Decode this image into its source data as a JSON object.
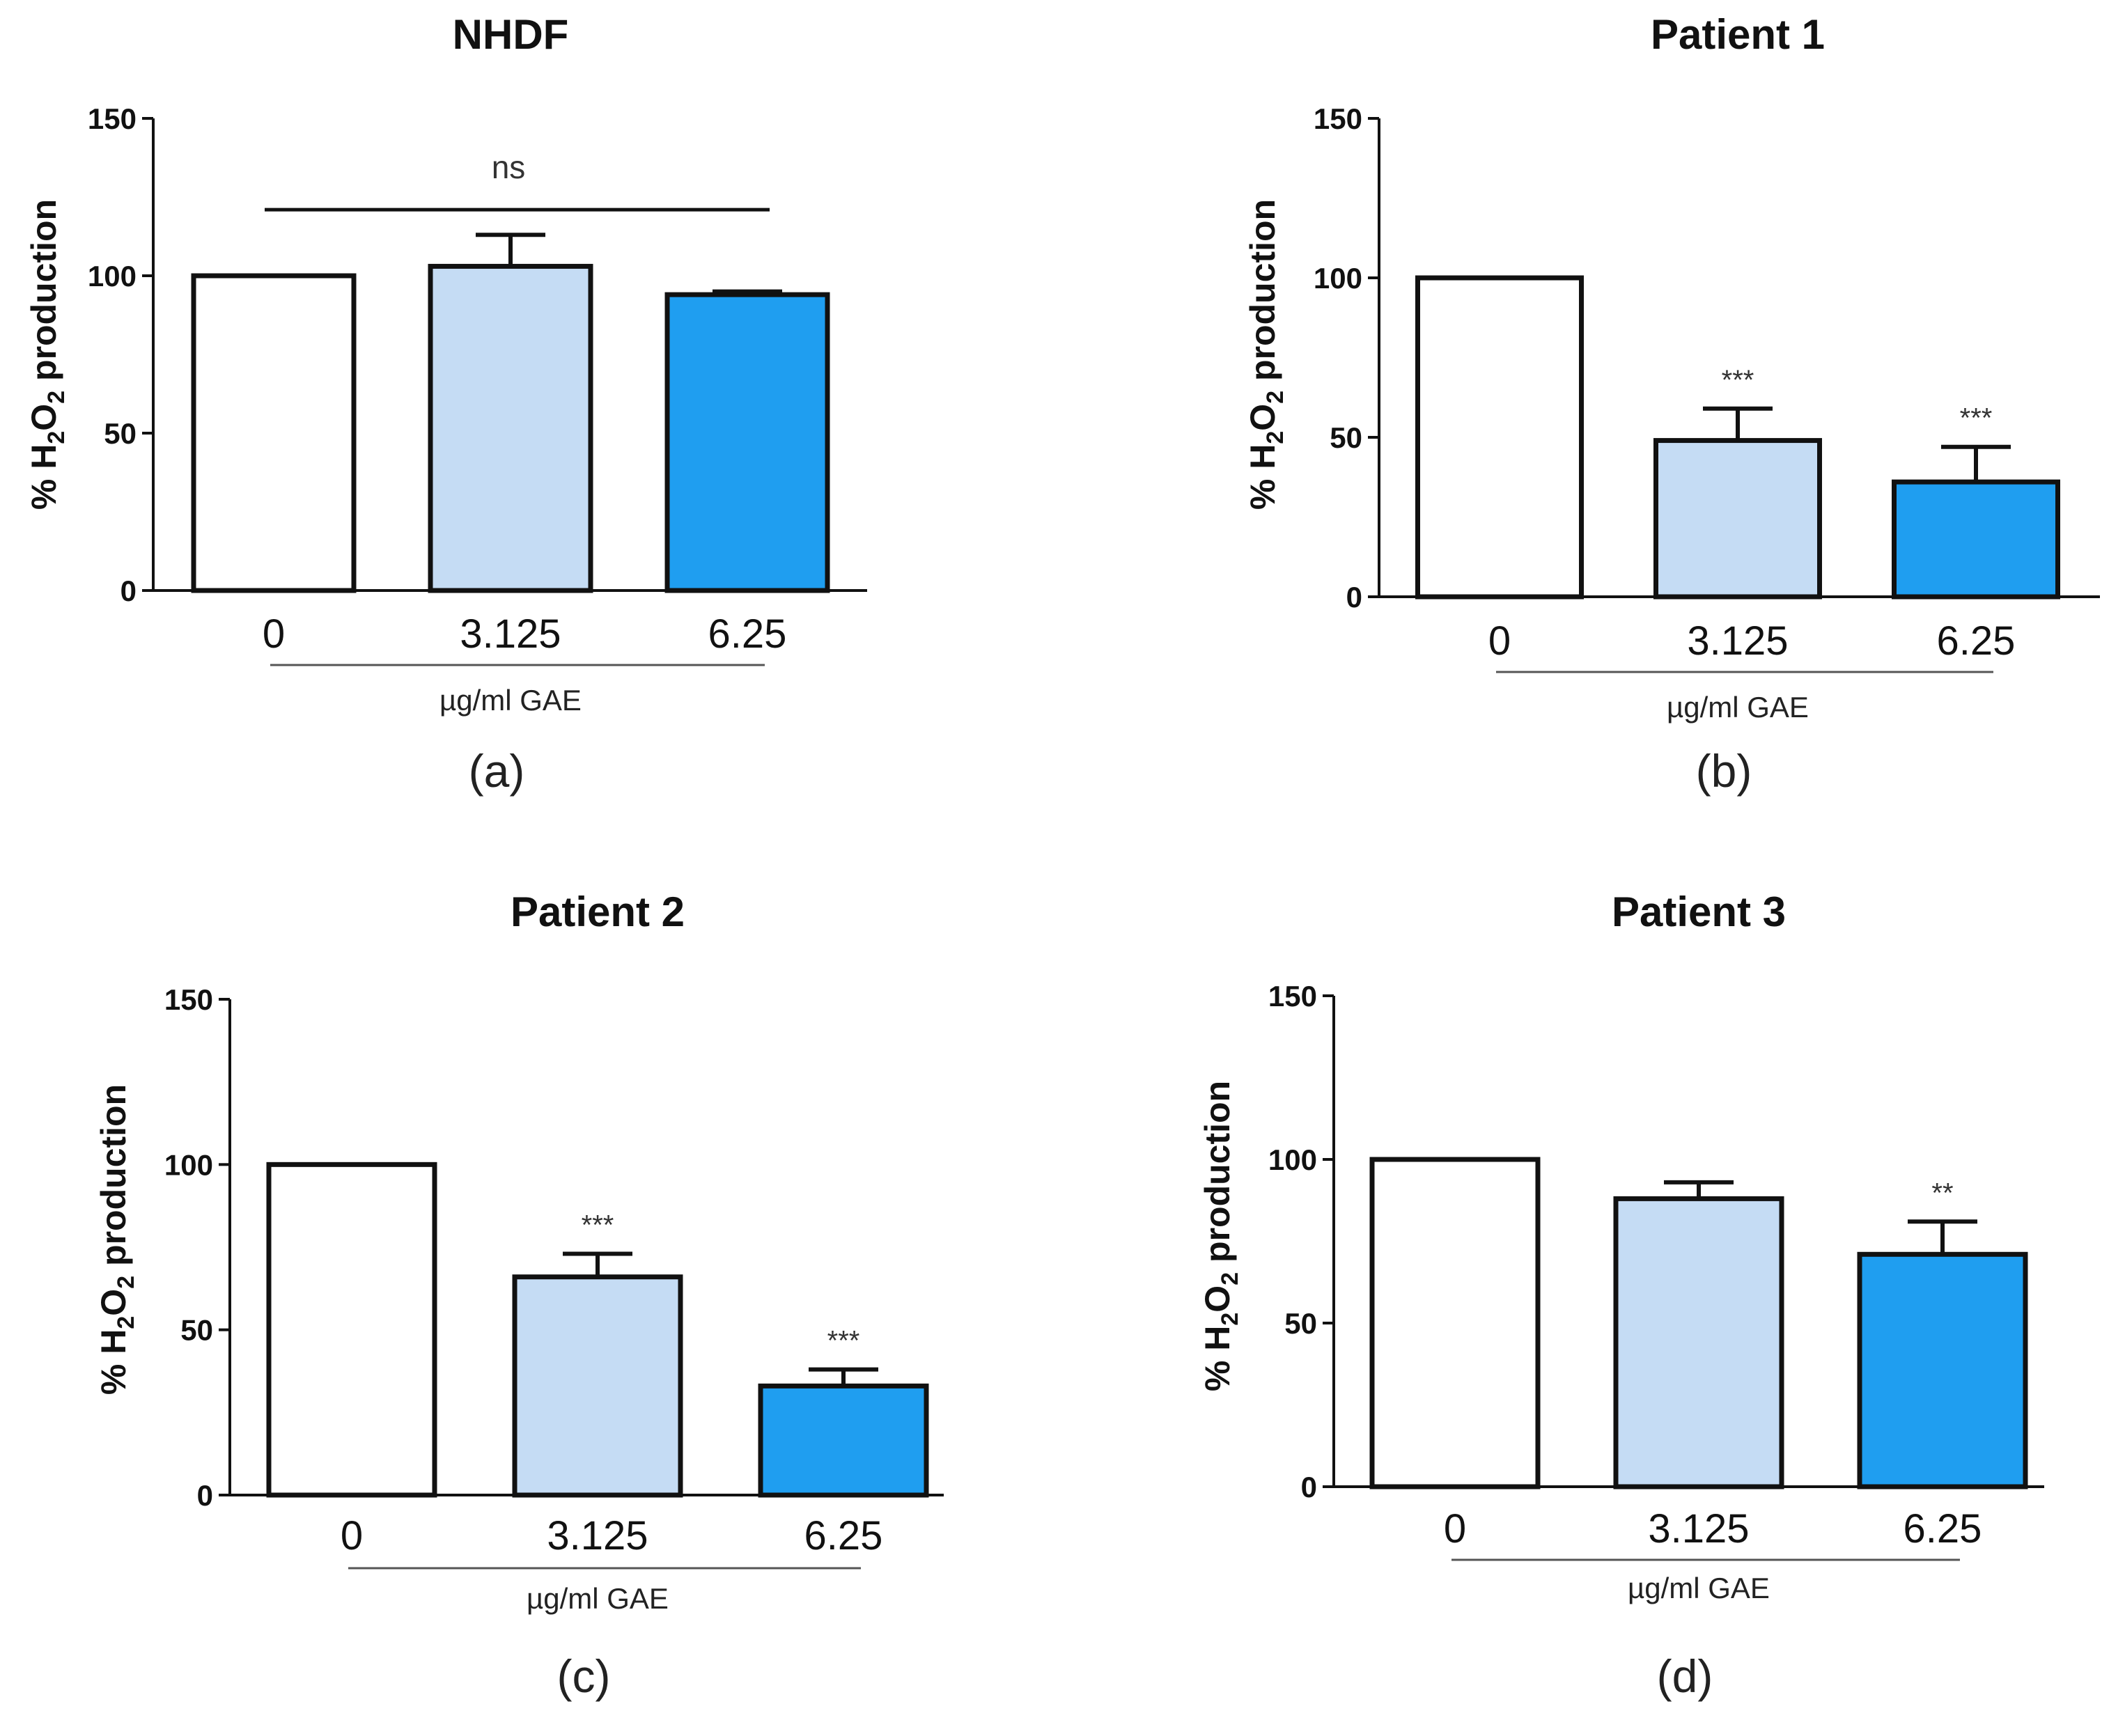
{
  "colors": {
    "bar_0": "#ffffff",
    "bar_3_125": "#c5dcf4",
    "bar_6_25": "#1f9ef0",
    "stroke": "#111111"
  },
  "chart_data": [
    {
      "type": "bar",
      "title": "NHDF",
      "panel_label": "(a)",
      "categories": [
        "0",
        "3.125",
        "6.25"
      ],
      "values": [
        100,
        103,
        94
      ],
      "errors": [
        0,
        10,
        1
      ],
      "significance": [
        "",
        "",
        ""
      ],
      "bracket_label": "ns",
      "ylabel_prefix": "% H",
      "ylabel_sub1": "2",
      "ylabel_mid": "O",
      "ylabel_sub2": "2",
      "ylabel_suffix": " production",
      "xlabel": "µg/ml GAE",
      "ylim": [
        0,
        150
      ],
      "yticks": [
        "0",
        "50",
        "100",
        "150"
      ]
    },
    {
      "type": "bar",
      "title": "Patient 1",
      "panel_label": "(b)",
      "categories": [
        "0",
        "3.125",
        "6.25"
      ],
      "values": [
        100,
        49,
        36
      ],
      "errors": [
        0,
        10,
        11
      ],
      "significance": [
        "",
        "***",
        "***"
      ],
      "bracket_label": "",
      "ylabel_prefix": "% H",
      "ylabel_sub1": "2",
      "ylabel_mid": "O",
      "ylabel_sub2": "2",
      "ylabel_suffix": " production",
      "xlabel": "µg/ml GAE",
      "ylim": [
        0,
        150
      ],
      "yticks": [
        "0",
        "50",
        "100",
        "150"
      ]
    },
    {
      "type": "bar",
      "title": "Patient 2",
      "panel_label": "(c)",
      "categories": [
        "0",
        "3.125",
        "6.25"
      ],
      "values": [
        100,
        66,
        33
      ],
      "errors": [
        0,
        7,
        5
      ],
      "significance": [
        "",
        "***",
        "***"
      ],
      "bracket_label": "",
      "ylabel_prefix": "% H",
      "ylabel_sub1": "2",
      "ylabel_mid": "O",
      "ylabel_sub2": "2",
      "ylabel_suffix": " production",
      "xlabel": "µg/ml GAE",
      "ylim": [
        0,
        150
      ],
      "yticks": [
        "0",
        "50",
        "100",
        "150"
      ]
    },
    {
      "type": "bar",
      "title": "Patient 3",
      "panel_label": "(d)",
      "categories": [
        "0",
        "3.125",
        "6.25"
      ],
      "values": [
        100,
        88,
        71
      ],
      "errors": [
        0,
        5,
        10
      ],
      "significance": [
        "",
        "",
        "**"
      ],
      "bracket_label": "",
      "ylabel_prefix": "% H",
      "ylabel_sub1": "2",
      "ylabel_mid": "O",
      "ylabel_sub2": "2",
      "ylabel_suffix": " production",
      "xlabel": "µg/ml GAE",
      "ylim": [
        0,
        150
      ],
      "yticks": [
        "0",
        "50",
        "100",
        "150"
      ]
    }
  ]
}
